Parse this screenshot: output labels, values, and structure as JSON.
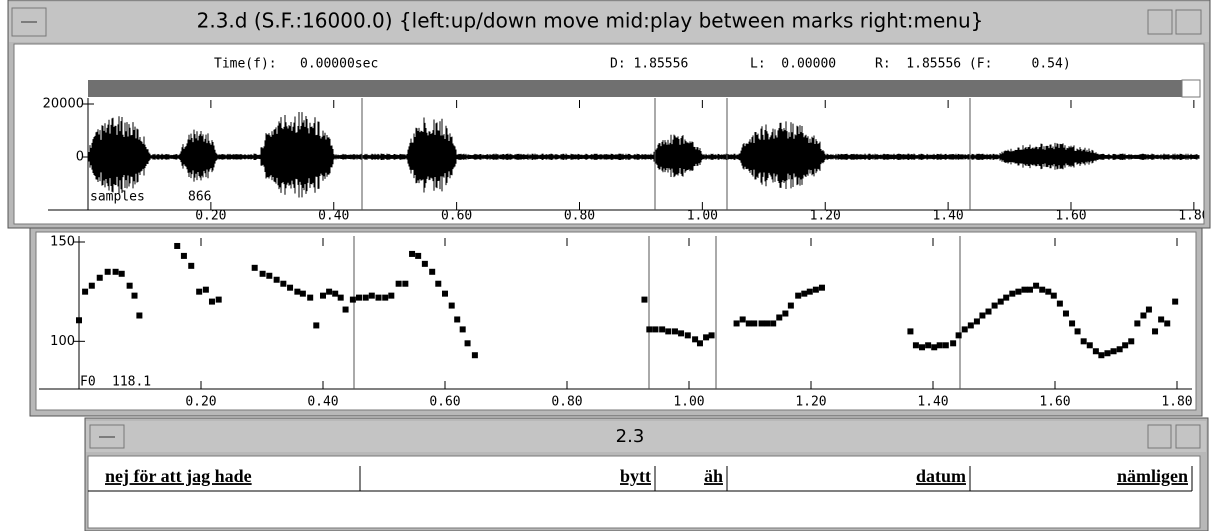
{
  "wave_window": {
    "title": "2.3.d (S.F.:16000.0) {left:up/down move  mid:play between marks  right:menu}",
    "time_label": "Time(f):",
    "time_value": "0.00000sec",
    "d": "D: 1.85556",
    "l": "L:  0.00000",
    "r": "R:  1.85556 (F:     0.54)",
    "chart_data": {
      "type": "waveform",
      "xlim": [
        0,
        1.81
      ],
      "ylim": [
        -20000,
        20000
      ],
      "yticks": [
        0,
        20000
      ],
      "xticks": [
        {
          "value": 0.2,
          "label": "0.20"
        },
        {
          "value": 0.4,
          "label": "0.40"
        },
        {
          "value": 0.6,
          "label": "0.60"
        },
        {
          "value": 0.8,
          "label": "0.80"
        },
        {
          "value": 1.0,
          "label": "1.00"
        },
        {
          "value": 1.2,
          "label": "1.20"
        },
        {
          "value": 1.4,
          "label": "1.40"
        },
        {
          "value": 1.6,
          "label": "1.60"
        },
        {
          "value": 1.8,
          "label": "1.80"
        }
      ],
      "cursor_label": "samples",
      "cursor_value": 866
    }
  },
  "f0_window": {
    "chart_data": {
      "type": "scatter",
      "xlim": [
        0,
        1.8246
      ],
      "ylim": [
        76,
        150
      ],
      "yticks": [
        100,
        150
      ],
      "xticks": [
        {
          "value": 0.2,
          "label": "0.20"
        },
        {
          "value": 0.4,
          "label": "0.40"
        },
        {
          "value": 0.6,
          "label": "0.60"
        },
        {
          "value": 0.8,
          "label": "0.80"
        },
        {
          "value": 1.0,
          "label": "1.00"
        },
        {
          "value": 1.2,
          "label": "1.20"
        },
        {
          "value": 1.4,
          "label": "1.40"
        },
        {
          "value": 1.6,
          "label": "1.60"
        },
        {
          "value": 1.8,
          "label": "1.80"
        }
      ],
      "cursor_label": "F0",
      "cursor_value": 118.1,
      "color": "#000000",
      "x": [
        0.0,
        0.01,
        0.021,
        0.034,
        0.047,
        0.06,
        0.07,
        0.083,
        0.091,
        0.099,
        0.161,
        0.172,
        0.184,
        0.197,
        0.208,
        0.218,
        0.229,
        0.288,
        0.301,
        0.312,
        0.324,
        0.335,
        0.346,
        0.358,
        0.367,
        0.379,
        0.389,
        0.4,
        0.41,
        0.42,
        0.429,
        0.437,
        0.449,
        0.459,
        0.47,
        0.48,
        0.491,
        0.502,
        0.512,
        0.524,
        0.535,
        0.546,
        0.556,
        0.567,
        0.579,
        0.589,
        0.6,
        0.611,
        0.62,
        0.629,
        0.637,
        0.649,
        0.927,
        0.935,
        0.945,
        0.956,
        0.966,
        0.977,
        0.987,
        0.998,
        1.01,
        1.018,
        1.028,
        1.037,
        1.078,
        1.088,
        1.098,
        1.107,
        1.119,
        1.128,
        1.138,
        1.148,
        1.158,
        1.167,
        1.179,
        1.189,
        1.198,
        1.208,
        1.218,
        1.363,
        1.372,
        1.382,
        1.392,
        1.402,
        1.411,
        1.421,
        1.433,
        1.442,
        1.452,
        1.462,
        1.472,
        1.481,
        1.491,
        1.501,
        1.511,
        1.52,
        1.53,
        1.54,
        1.55,
        1.559,
        1.569,
        1.579,
        1.589,
        1.598,
        1.608,
        1.618,
        1.628,
        1.637,
        1.647,
        1.657,
        1.667,
        1.676,
        1.686,
        1.696,
        1.706,
        1.715,
        1.725,
        1.735,
        1.745,
        1.754,
        1.764,
        1.774,
        1.784,
        1.797
      ],
      "values": [
        110.6,
        125,
        128,
        132,
        135,
        135,
        134,
        128,
        123,
        113,
        148,
        143,
        138,
        125,
        126,
        120,
        121,
        137,
        134,
        133,
        131,
        129,
        127,
        125,
        124,
        122,
        108,
        123,
        125,
        124,
        122,
        116,
        121,
        122,
        122,
        123,
        122,
        122,
        123,
        129,
        129,
        144,
        143,
        139,
        135,
        129,
        124,
        118,
        111,
        106,
        99,
        93,
        121,
        106,
        106,
        106,
        105,
        105,
        104,
        103,
        101,
        99,
        102,
        103,
        109,
        111,
        109,
        109,
        109,
        109,
        109,
        112,
        114,
        118,
        123,
        124,
        125,
        126,
        127,
        105,
        98,
        97,
        98,
        97,
        98,
        98,
        99,
        103,
        106,
        108,
        110,
        113,
        115,
        118,
        120,
        122,
        124,
        125,
        126,
        126,
        128,
        126,
        125,
        123,
        119,
        114,
        109,
        105,
        100,
        98,
        95,
        93,
        94,
        95,
        96,
        98,
        100,
        109,
        113,
        116,
        105,
        111,
        109,
        120
      ]
    }
  },
  "label_window": {
    "title": "2.3",
    "labels": [
      "nej för att jag hade",
      "bytt",
      "äh",
      "datum",
      "nämligen"
    ]
  }
}
